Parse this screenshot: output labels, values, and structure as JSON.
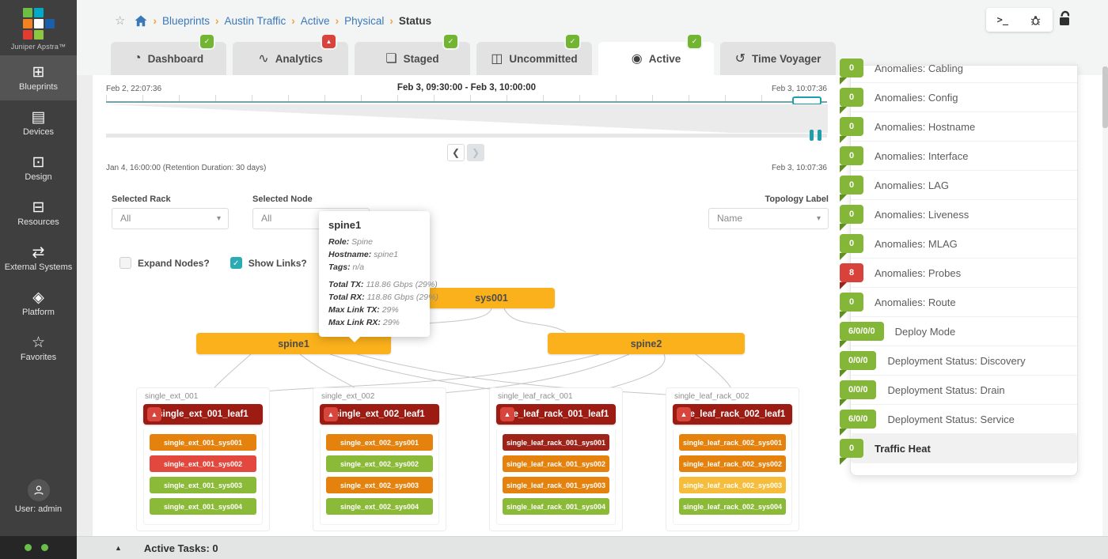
{
  "sidebar": {
    "brand": "Juniper Apstra™",
    "items": [
      {
        "name": "sidebar-item-blueprints",
        "label": "Blueprints",
        "icon": "icon-blueprints",
        "active": true
      },
      {
        "name": "sidebar-item-devices",
        "label": "Devices",
        "icon": "icon-devices"
      },
      {
        "name": "sidebar-item-design",
        "label": "Design",
        "icon": "icon-design"
      },
      {
        "name": "sidebar-item-resources",
        "label": "Resources",
        "icon": "icon-resources"
      },
      {
        "name": "sidebar-item-external-systems",
        "label": "External Systems",
        "icon": "icon-external"
      },
      {
        "name": "sidebar-item-platform",
        "label": "Platform",
        "icon": "icon-platform"
      },
      {
        "name": "sidebar-item-favorites",
        "label": "Favorites",
        "icon": "icon-favorites"
      }
    ],
    "user_label": "User: admin",
    "logo_colors": [
      "#6dbe45",
      "#00a9c5",
      "",
      "#f58220",
      "#ffffff",
      "#1b5faa",
      "#e03c31",
      "#8dc63f",
      ""
    ]
  },
  "breadcrumb": {
    "links": [
      {
        "label": "Blueprints"
      },
      {
        "label": "Austin Traffic"
      },
      {
        "label": "Active"
      },
      {
        "label": "Physical"
      }
    ],
    "current": "Status",
    "separator": "›"
  },
  "topbar": {
    "terminal_label": ">_"
  },
  "tabs": [
    {
      "name": "tab-dashboard",
      "label": "Dashboard",
      "icon": "icon-dashboard",
      "badge": "ok"
    },
    {
      "name": "tab-analytics",
      "label": "Analytics",
      "icon": "icon-analytics",
      "badge": "warn"
    },
    {
      "name": "tab-staged",
      "label": "Staged",
      "icon": "icon-staged",
      "badge": "ok"
    },
    {
      "name": "tab-uncommitted",
      "label": "Uncommitted",
      "icon": "icon-uncommitted",
      "badge": "ok"
    },
    {
      "name": "tab-active",
      "label": "Active",
      "icon": "icon-active",
      "badge": "ok",
      "active": true
    },
    {
      "name": "tab-time-voyager",
      "label": "Time Voyager",
      "icon": "icon-time-voyager"
    }
  ],
  "timeline": {
    "start_label": "Feb 2, 22:07:36",
    "range_label": "Feb 3, 09:30:00 - Feb 3, 10:00:00",
    "end_label_top": "Feb 3, 10:07:36",
    "retention_label": "Jan 4, 16:00:00 (Retention Duration: 30 days)",
    "end_label_bottom": "Feb 3, 10:07:36",
    "prev_label": "❮",
    "next_label": "❯"
  },
  "filters": {
    "selected_rack_label": "Selected Rack",
    "selected_rack_value": "All",
    "selected_node_label": "Selected Node",
    "selected_node_value": "All",
    "topology_label_label": "Topology Label",
    "topology_label_value": "Name",
    "expand_nodes_label": "Expand Nodes?",
    "show_links_label": "Show Links?"
  },
  "tooltip": {
    "title": "spine1",
    "details": [
      {
        "label": "Role:",
        "value": "Spine"
      },
      {
        "label": "Hostname:",
        "value": "spine1"
      },
      {
        "label": "Tags:",
        "value": "n/a"
      }
    ],
    "stats": [
      {
        "label": "Total TX:",
        "value": "118.86 Gbps (29%)"
      },
      {
        "label": "Total RX:",
        "value": "118.86 Gbps (29%)"
      },
      {
        "label": "Max Link TX:",
        "value": "29%"
      },
      {
        "label": "Max Link RX:",
        "value": "29%"
      }
    ]
  },
  "topology": {
    "generic_node": "sys001",
    "spine1": "spine1",
    "spine2": "spine2",
    "warning_glyph": "▲",
    "racks": [
      {
        "label": "single_ext_001",
        "leaf": "single_ext_001_leaf1",
        "systems": [
          {
            "label": "single_ext_001_sys001",
            "color": "orange"
          },
          {
            "label": "single_ext_001_sys002",
            "color": "red"
          },
          {
            "label": "single_ext_001_sys003",
            "color": "green"
          },
          {
            "label": "single_ext_001_sys004",
            "color": "green"
          }
        ]
      },
      {
        "label": "single_ext_002",
        "leaf": "single_ext_002_leaf1",
        "systems": [
          {
            "label": "single_ext_002_sys001",
            "color": "orange"
          },
          {
            "label": "single_ext_002_sys002",
            "color": "green"
          },
          {
            "label": "single_ext_002_sys003",
            "color": "orange"
          },
          {
            "label": "single_ext_002_sys004",
            "color": "green"
          }
        ]
      },
      {
        "label": "single_leaf_rack_001",
        "leaf": "...le_leaf_rack_001_leaf1",
        "systems": [
          {
            "label": "single_leaf_rack_001_sys001",
            "color": "maroon"
          },
          {
            "label": "single_leaf_rack_001_sys002",
            "color": "orange"
          },
          {
            "label": "single_leaf_rack_001_sys003",
            "color": "orange"
          },
          {
            "label": "single_leaf_rack_001_sys004",
            "color": "green"
          }
        ]
      },
      {
        "label": "single_leaf_rack_002",
        "leaf": "...le_leaf_rack_002_leaf1",
        "systems": [
          {
            "label": "single_leaf_rack_002_sys001",
            "color": "orange"
          },
          {
            "label": "single_leaf_rack_002_sys002",
            "color": "orange"
          },
          {
            "label": "single_leaf_rack_002_sys003",
            "color": "yellow"
          },
          {
            "label": "single_leaf_rack_002_sys004",
            "color": "green"
          }
        ]
      }
    ]
  },
  "right_panel": {
    "rows": [
      {
        "count": "0",
        "label": "Anomalies: Cabling",
        "clipped": true
      },
      {
        "count": "0",
        "label": "Anomalies: Config"
      },
      {
        "count": "0",
        "label": "Anomalies: Hostname"
      },
      {
        "count": "0",
        "label": "Anomalies: Interface"
      },
      {
        "count": "0",
        "label": "Anomalies: LAG"
      },
      {
        "count": "0",
        "label": "Anomalies: Liveness"
      },
      {
        "count": "0",
        "label": "Anomalies: MLAG"
      },
      {
        "count": "8",
        "label": "Anomalies: Probes",
        "color": "red"
      },
      {
        "count": "0",
        "label": "Anomalies: Route"
      },
      {
        "count": "6/0/0/0",
        "label": "Deploy Mode"
      },
      {
        "count": "0/0/0",
        "label": "Deployment Status: Discovery"
      },
      {
        "count": "0/0/0",
        "label": "Deployment Status: Drain"
      },
      {
        "count": "6/0/0",
        "label": "Deployment Status: Service"
      },
      {
        "count": "0",
        "label": "Traffic Heat",
        "selected": true
      }
    ]
  },
  "footer": {
    "toggle_glyph": "▲",
    "active_tasks_label": "Active Tasks: 0"
  },
  "colors": {
    "accent_teal": "#2bacb5",
    "timeline_teal": "#1e9daa",
    "badge_green": "#84b637",
    "badge_red": "#d9423a",
    "node_amber": "#fbb11b",
    "leaf_maroon": "#9c1b13",
    "sys_orange": "#e5820e",
    "sys_red": "#e2483d",
    "sys_green": "#8bba38",
    "sys_yellow": "#f5bd3b",
    "sys_maroon": "#9e241a",
    "link_blue": "#3b78ba",
    "crumb_sep_orange": "#f2a33c",
    "sidebar_bg": "#3f3f3f"
  }
}
